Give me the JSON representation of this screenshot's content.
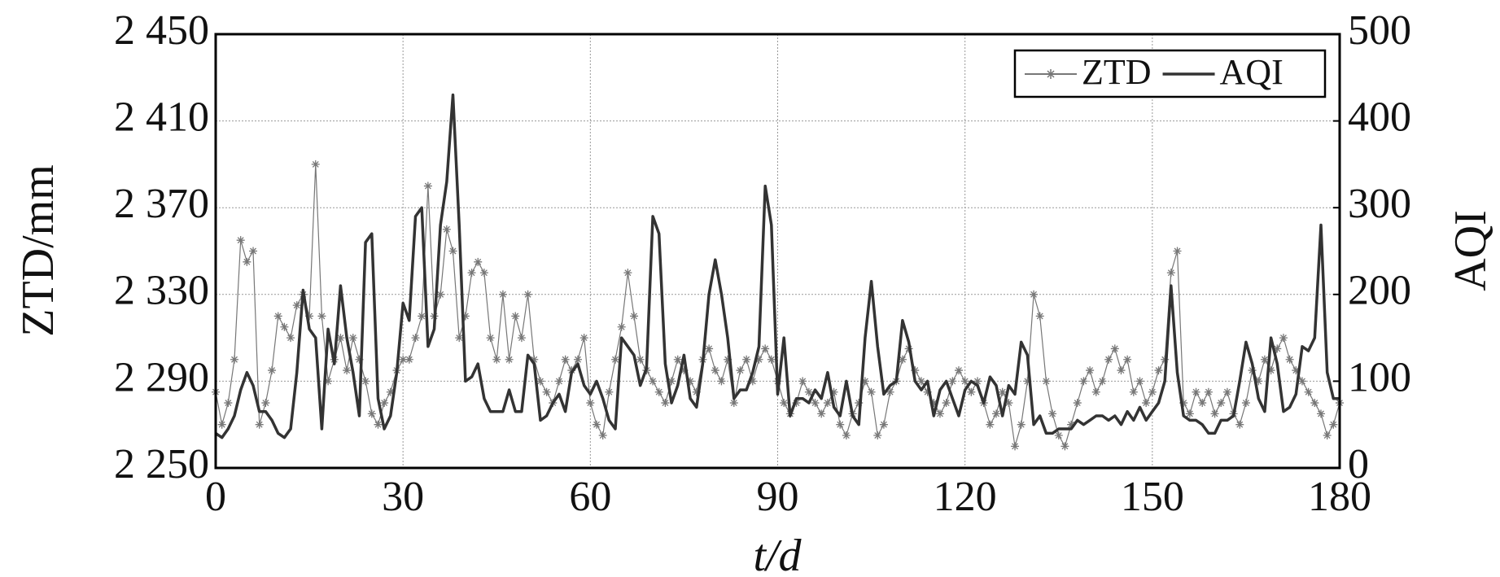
{
  "chart_data": {
    "type": "line",
    "xlabel": "t/d",
    "ylabel": "ZTD/mm",
    "y2label": "AQI",
    "x": [
      0,
      1,
      2,
      3,
      4,
      5,
      6,
      7,
      8,
      9,
      10,
      11,
      12,
      13,
      14,
      15,
      16,
      17,
      18,
      19,
      20,
      21,
      22,
      23,
      24,
      25,
      26,
      27,
      28,
      29,
      30,
      31,
      32,
      33,
      34,
      35,
      36,
      37,
      38,
      39,
      40,
      41,
      42,
      43,
      44,
      45,
      46,
      47,
      48,
      49,
      50,
      51,
      52,
      53,
      54,
      55,
      56,
      57,
      58,
      59,
      60,
      61,
      62,
      63,
      64,
      65,
      66,
      67,
      68,
      69,
      70,
      71,
      72,
      73,
      74,
      75,
      76,
      77,
      78,
      79,
      80,
      81,
      82,
      83,
      84,
      85,
      86,
      87,
      88,
      89,
      90,
      91,
      92,
      93,
      94,
      95,
      96,
      97,
      98,
      99,
      100,
      101,
      102,
      103,
      104,
      105,
      106,
      107,
      108,
      109,
      110,
      111,
      112,
      113,
      114,
      115,
      116,
      117,
      118,
      119,
      120,
      121,
      122,
      123,
      124,
      125,
      126,
      127,
      128,
      129,
      130,
      131,
      132,
      133,
      134,
      135,
      136,
      137,
      138,
      139,
      140,
      141,
      142,
      143,
      144,
      145,
      146,
      147,
      148,
      149,
      150,
      151,
      152,
      153,
      154,
      155,
      156,
      157,
      158,
      159,
      160,
      161,
      162,
      163,
      164,
      165,
      166,
      167,
      168,
      169,
      170,
      171,
      172,
      173,
      174,
      175,
      176,
      177,
      178,
      179,
      180
    ],
    "series": [
      {
        "name": "ZTD",
        "color": "#777777",
        "axis": "y",
        "marker": "asterisk",
        "values": [
          2285,
          2270,
          2280,
          2300,
          2355,
          2345,
          2350,
          2270,
          2280,
          2295,
          2320,
          2315,
          2310,
          2325,
          2330,
          2320,
          2390,
          2320,
          2290,
          2300,
          2310,
          2295,
          2310,
          2300,
          2290,
          2275,
          2270,
          2280,
          2285,
          2295,
          2300,
          2300,
          2310,
          2320,
          2380,
          2320,
          2330,
          2360,
          2350,
          2310,
          2320,
          2340,
          2345,
          2340,
          2310,
          2300,
          2330,
          2300,
          2320,
          2310,
          2330,
          2300,
          2290,
          2285,
          2280,
          2290,
          2300,
          2295,
          2300,
          2310,
          2280,
          2270,
          2265,
          2285,
          2300,
          2315,
          2340,
          2320,
          2300,
          2295,
          2290,
          2285,
          2280,
          2290,
          2300,
          2295,
          2290,
          2285,
          2300,
          2305,
          2295,
          2290,
          2300,
          2280,
          2295,
          2300,
          2290,
          2300,
          2305,
          2300,
          2290,
          2280,
          2275,
          2280,
          2290,
          2285,
          2280,
          2275,
          2280,
          2285,
          2270,
          2265,
          2275,
          2280,
          2290,
          2285,
          2265,
          2270,
          2285,
          2290,
          2300,
          2305,
          2295,
          2290,
          2285,
          2280,
          2275,
          2280,
          2290,
          2295,
          2290,
          2285,
          2290,
          2280,
          2270,
          2275,
          2285,
          2280,
          2260,
          2270,
          2290,
          2330,
          2320,
          2290,
          2275,
          2265,
          2260,
          2270,
          2280,
          2290,
          2295,
          2285,
          2290,
          2300,
          2305,
          2295,
          2300,
          2285,
          2290,
          2280,
          2285,
          2295,
          2300,
          2340,
          2350,
          2280,
          2275,
          2285,
          2280,
          2285,
          2275,
          2280,
          2285,
          2275,
          2270,
          2280,
          2295,
          2290,
          2300,
          2295,
          2305,
          2310,
          2300,
          2295,
          2290,
          2285,
          2280,
          2275,
          2265,
          2270,
          2280
        ]
      },
      {
        "name": "AQI",
        "color": "#333333",
        "axis": "y2",
        "values": [
          40,
          35,
          45,
          60,
          90,
          110,
          95,
          65,
          65,
          55,
          40,
          35,
          45,
          110,
          205,
          160,
          150,
          45,
          160,
          120,
          210,
          150,
          110,
          60,
          260,
          270,
          80,
          45,
          60,
          110,
          190,
          170,
          290,
          300,
          140,
          160,
          280,
          330,
          430,
          280,
          100,
          105,
          120,
          80,
          65,
          65,
          65,
          90,
          65,
          65,
          130,
          120,
          55,
          60,
          75,
          85,
          65,
          110,
          120,
          95,
          85,
          100,
          80,
          55,
          45,
          150,
          140,
          130,
          95,
          115,
          290,
          270,
          120,
          75,
          95,
          130,
          80,
          70,
          120,
          200,
          240,
          200,
          150,
          80,
          90,
          90,
          110,
          140,
          325,
          280,
          85,
          150,
          60,
          80,
          80,
          75,
          90,
          80,
          110,
          70,
          60,
          100,
          60,
          50,
          150,
          215,
          140,
          85,
          95,
          100,
          170,
          145,
          100,
          90,
          100,
          60,
          90,
          100,
          80,
          60,
          90,
          100,
          95,
          75,
          105,
          95,
          60,
          95,
          85,
          145,
          130,
          50,
          60,
          40,
          40,
          45,
          45,
          45,
          55,
          50,
          55,
          60,
          60,
          55,
          60,
          50,
          65,
          55,
          70,
          55,
          65,
          75,
          100,
          210,
          110,
          60,
          55,
          55,
          50,
          40,
          40,
          55,
          55,
          60,
          100,
          145,
          120,
          80,
          65,
          150,
          120,
          65,
          70,
          85,
          140,
          135,
          150,
          280,
          110,
          80,
          80
        ]
      }
    ],
    "xlim": [
      0,
      180
    ],
    "xticks": [
      0,
      30,
      60,
      90,
      120,
      150,
      180
    ],
    "ylim": [
      2250,
      2450
    ],
    "yticks": [
      {
        "value": 2250,
        "label": "2 250"
      },
      {
        "value": 2290,
        "label": "2 290"
      },
      {
        "value": 2330,
        "label": "2 330"
      },
      {
        "value": 2370,
        "label": "2 370"
      },
      {
        "value": 2410,
        "label": "2 410"
      },
      {
        "value": 2450,
        "label": "2 450"
      }
    ],
    "y2lim": [
      0,
      500
    ],
    "y2ticks": [
      0,
      100,
      200,
      300,
      400,
      500
    ],
    "grid": true,
    "legend": "upper right"
  }
}
